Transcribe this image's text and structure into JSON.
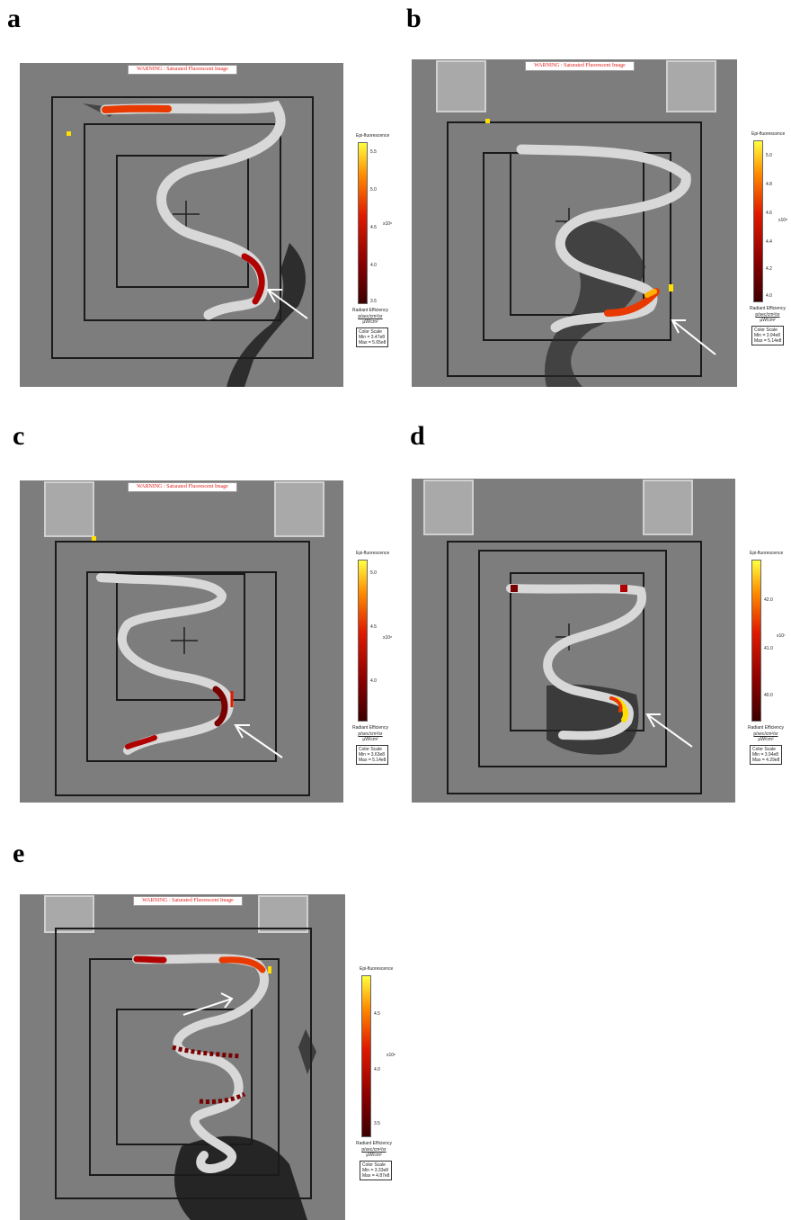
{
  "panels": [
    {
      "letter": "a",
      "warning": "WARNING : Saturated Fluorescent Image",
      "legend": {
        "title": "Epi-fluorescence",
        "ticks": [
          "5.5",
          "5.0",
          "4.5",
          "4.0",
          "3.5"
        ],
        "multiplier": "x10⁸",
        "units_title": "Radiant Efficiency",
        "units_top": "p/sec/cm²/sr",
        "units_bottom": "μW/cm²",
        "scale_label": "Color Scale",
        "min": "Min = 3.47e8",
        "max": "Max = 5.65e8"
      }
    },
    {
      "letter": "b",
      "warning": "WARNING : Saturated Fluorescent Image",
      "legend": {
        "title": "Epi-fluorescence",
        "ticks": [
          "5.0",
          "4.8",
          "4.6",
          "4.4",
          "4.2",
          "4.0"
        ],
        "multiplier": "x10⁸",
        "units_title": "Radiant Efficiency",
        "units_top": "p/sec/cm²/sr",
        "units_bottom": "μW/cm²",
        "scale_label": "Color Scale",
        "min": "Min = 3.94e8",
        "max": "Max = 5.14e8"
      }
    },
    {
      "letter": "c",
      "warning": "WARNING : Saturated Fluorescent Image",
      "legend": {
        "title": "Epi-fluorescence",
        "ticks": [
          "5.0",
          "4.5",
          "4.0"
        ],
        "multiplier": "x10⁸",
        "units_title": "Radiant Efficiency",
        "units_top": "p/sec/cm²/sr",
        "units_bottom": "μW/cm²",
        "scale_label": "Color Scale",
        "min": "Min = 3.63e8",
        "max": "Max = 5.14e8"
      }
    },
    {
      "letter": "d",
      "warning": "",
      "legend": {
        "title": "Epi-fluorescence",
        "ticks": [
          "42.0",
          "41.0",
          "40.0"
        ],
        "multiplier": "x10⁷",
        "units_title": "Radiant Efficiency",
        "units_top": "p/sec/cm²/sr",
        "units_bottom": "μW/cm²",
        "scale_label": "Color Scale",
        "min": "Min = 3.94e8",
        "max": "Max = 4.29e8"
      }
    },
    {
      "letter": "e",
      "warning": "WARNING : Saturated Fluorescent Image",
      "legend": {
        "title": "Epi-fluorescence",
        "ticks": [
          "4.5",
          "4.0",
          "3.5"
        ],
        "multiplier": "x10⁸",
        "units_title": "Radiant Efficiency",
        "units_top": "p/sec/cm²/sr",
        "units_bottom": "μW/cm²",
        "scale_label": "Color Scale",
        "min": "Min = 3.33e8",
        "max": "Max = 4.87e8"
      }
    }
  ],
  "colors": {
    "background": "#7f7f7f",
    "tube": "#e6e6e6",
    "signal_hot": "#ffde00",
    "signal_mid": "#e83a00",
    "signal_low": "#7a0000",
    "arrow": "#ffffff"
  }
}
